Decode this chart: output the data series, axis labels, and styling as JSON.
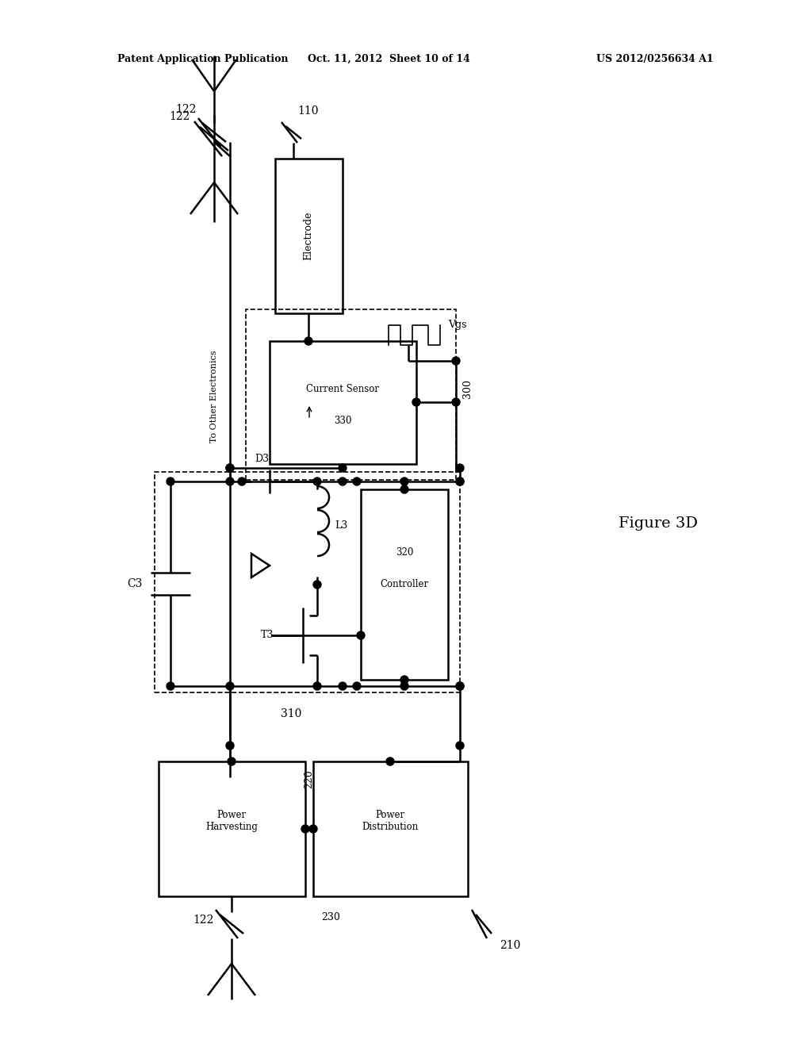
{
  "header_left": "Patent Application Publication",
  "header_center": "Oct. 11, 2012  Sheet 10 of 14",
  "header_right": "US 2012/0256634 A1",
  "figure_label": "Figure 3D",
  "bg_color": "#ffffff",
  "line_color": "#000000",
  "lw": 1.8,
  "dash_lw": 1.2,
  "labels": {
    "122_top": "122",
    "110": "110",
    "electrode": "Electrode",
    "vgs": "Vgs",
    "to_other": "To Other Electronics",
    "current_sensor": "Current Sensor",
    "330": "330",
    "300": "300",
    "D3": "D3",
    "L3": "L3",
    "C3": "C3",
    "T3": "T3",
    "controller": "Controller",
    "320": "320",
    "310": "310",
    "power_harvesting": "Power\nHarvesting",
    "220": "220",
    "power_distribution": "Power\nDistribution",
    "230": "230",
    "210": "210",
    "122_bottom": "122"
  }
}
